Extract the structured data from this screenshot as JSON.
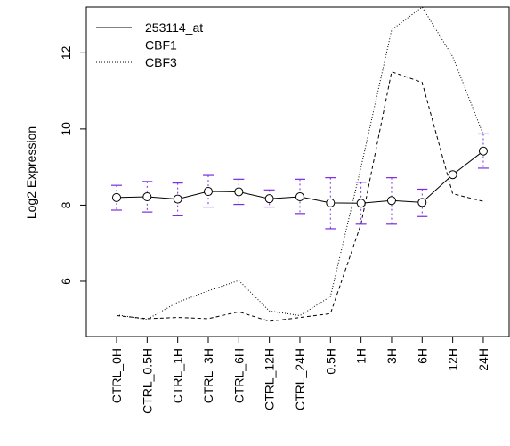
{
  "chart_data": {
    "type": "line",
    "ylabel": "Log2 Expression",
    "categories": [
      "CTRL_0H",
      "CTRL_0.5H",
      "CTRL_1H",
      "CTRL_3H",
      "CTRL_6H",
      "CTRL_12H",
      "CTRL_24H",
      "0.5H",
      "1H",
      "3H",
      "6H",
      "12H",
      "24H"
    ],
    "yticks": [
      6,
      8,
      10,
      12
    ],
    "ylim": [
      4.55,
      13.2
    ],
    "grid": false,
    "legend_position": "top-left",
    "series": [
      {
        "name": "253114_at",
        "style": "solid",
        "markers": "open-circle",
        "values": [
          8.2,
          8.22,
          8.16,
          8.36,
          8.35,
          8.17,
          8.22,
          8.06,
          8.05,
          8.12,
          8.07,
          8.8,
          9.42
        ],
        "error_low": [
          7.87,
          7.82,
          7.72,
          7.95,
          8.02,
          7.95,
          7.78,
          7.38,
          7.5,
          7.5,
          7.7,
          8.8,
          8.97
        ],
        "error_high": [
          8.52,
          8.62,
          8.58,
          8.78,
          8.68,
          8.4,
          8.68,
          8.72,
          8.6,
          8.72,
          8.42,
          8.8,
          9.87
        ]
      },
      {
        "name": "CBF1",
        "style": "dashed",
        "values": [
          5.1,
          5.02,
          5.05,
          5.02,
          5.2,
          4.95,
          5.05,
          5.15,
          7.5,
          11.5,
          11.22,
          8.3,
          8.1
        ]
      },
      {
        "name": "CBF3",
        "style": "dotted",
        "values": [
          5.12,
          5.0,
          5.45,
          5.75,
          6.02,
          5.22,
          5.1,
          5.6,
          9.0,
          12.6,
          13.2,
          11.9,
          9.85
        ]
      }
    ],
    "colors": {
      "line": "#000000",
      "error_bar": "#7b2be2",
      "background": "#ffffff"
    }
  }
}
